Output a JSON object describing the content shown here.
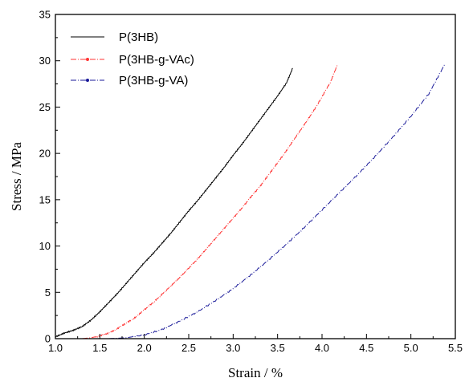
{
  "chart_data": {
    "type": "line",
    "xlabel": "Strain / %",
    "ylabel": "Stress / MPa",
    "xlim": [
      1.0,
      5.5
    ],
    "ylim": [
      0,
      35
    ],
    "xticks": [
      "1.0",
      "1.5",
      "2.0",
      "2.5",
      "3.0",
      "3.5",
      "4.0",
      "4.5",
      "5.0",
      "5.5"
    ],
    "yticks": [
      "0",
      "5",
      "10",
      "15",
      "20",
      "25",
      "30",
      "35"
    ],
    "grid": false,
    "legend_position": "top-left",
    "series": [
      {
        "name": "P(3HB)",
        "color": "#000000",
        "style": "solid",
        "x": [
          1.0,
          1.1,
          1.2,
          1.3,
          1.4,
          1.5,
          1.6,
          1.7,
          1.8,
          1.9,
          2.0,
          2.1,
          2.2,
          2.3,
          2.4,
          2.5,
          2.6,
          2.7,
          2.8,
          2.9,
          3.0,
          3.1,
          3.2,
          3.3,
          3.4,
          3.5,
          3.6,
          3.67
        ],
        "y": [
          0.2,
          0.6,
          0.9,
          1.3,
          2.0,
          2.9,
          3.9,
          4.9,
          6.0,
          7.1,
          8.2,
          9.2,
          10.3,
          11.4,
          12.6,
          13.8,
          14.9,
          16.1,
          17.3,
          18.5,
          19.8,
          21.0,
          22.3,
          23.6,
          24.9,
          26.2,
          27.6,
          29.2
        ]
      },
      {
        "name": "P(3HB-g-VAc)",
        "color": "#ff3333",
        "style": "dash-dot",
        "x": [
          1.3,
          1.4,
          1.5,
          1.6,
          1.7,
          1.8,
          1.9,
          2.0,
          2.1,
          2.2,
          2.3,
          2.4,
          2.5,
          2.6,
          2.7,
          2.8,
          2.9,
          3.0,
          3.1,
          3.2,
          3.3,
          3.4,
          3.5,
          3.6,
          3.7,
          3.8,
          3.9,
          4.0,
          4.1,
          4.17
        ],
        "y": [
          0.0,
          0.1,
          0.3,
          0.6,
          1.1,
          1.7,
          2.3,
          3.1,
          3.9,
          4.8,
          5.7,
          6.6,
          7.6,
          8.6,
          9.7,
          10.8,
          11.9,
          13.0,
          14.1,
          15.3,
          16.4,
          17.7,
          19.0,
          20.3,
          21.7,
          23.1,
          24.5,
          26.1,
          27.8,
          29.5
        ]
      },
      {
        "name": "P(3HB-g-VA)",
        "color": "#1a1a99",
        "style": "dash-dot",
        "x": [
          1.6,
          1.8,
          2.0,
          2.2,
          2.4,
          2.6,
          2.8,
          3.0,
          3.2,
          3.4,
          3.6,
          3.8,
          4.0,
          4.2,
          4.4,
          4.6,
          4.8,
          5.0,
          5.2,
          5.38
        ],
        "y": [
          0.0,
          0.1,
          0.4,
          1.0,
          1.9,
          2.9,
          4.1,
          5.4,
          6.9,
          8.5,
          10.2,
          12.0,
          13.9,
          15.8,
          17.7,
          19.7,
          21.8,
          24.0,
          26.4,
          29.6
        ]
      }
    ]
  }
}
